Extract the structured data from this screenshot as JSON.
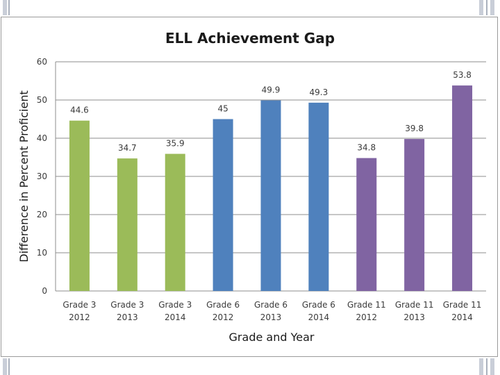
{
  "chart_data": {
    "type": "bar",
    "title": "ELL Achievement Gap",
    "xlabel": "Grade and Year",
    "ylabel": "Difference in Percent Proficient",
    "ylim": [
      0,
      60
    ],
    "yticks": [
      0,
      10,
      20,
      30,
      40,
      50,
      60
    ],
    "grid": true,
    "legend": "none",
    "categories": [
      [
        "Grade 3",
        "2012"
      ],
      [
        "Grade 3",
        "2013"
      ],
      [
        "Grade 3",
        "2014"
      ],
      [
        "Grade 6",
        "2012"
      ],
      [
        "Grade 6",
        "2013"
      ],
      [
        "Grade 6",
        "2014"
      ],
      [
        "Grade 11",
        "2012"
      ],
      [
        "Grade 11",
        "2013"
      ],
      [
        "Grade 11",
        "2014"
      ]
    ],
    "values": [
      44.6,
      34.7,
      35.9,
      45,
      49.9,
      49.3,
      34.8,
      39.8,
      53.8
    ],
    "data_labels": [
      "44.6",
      "34.7",
      "35.9",
      "45",
      "49.9",
      "49.3",
      "34.8",
      "39.8",
      "53.8"
    ],
    "colors": [
      "#9bbb59",
      "#9bbb59",
      "#9bbb59",
      "#4f81bd",
      "#4f81bd",
      "#4f81bd",
      "#8064a2",
      "#8064a2",
      "#8064a2"
    ]
  }
}
